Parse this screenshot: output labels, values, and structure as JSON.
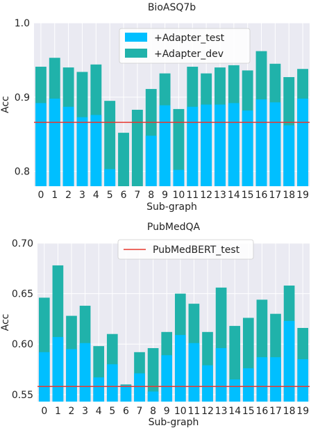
{
  "colors": {
    "test": "#00bfff",
    "dev": "#20b2aa",
    "baseline": "#e8382f",
    "panel": "#eaeaf2",
    "grid": "#ffffff"
  },
  "chart_data": [
    {
      "type": "bar",
      "stacked": "overlay",
      "title": "BioASQ7b",
      "xlabel": "Sub-graph",
      "ylabel": "Acc",
      "ylim": [
        0.78,
        1.0
      ],
      "yticks": [
        0.8,
        0.9,
        1.0
      ],
      "ytick_labels": [
        "0.8",
        "0.9",
        "1.0"
      ],
      "categories": [
        "0",
        "1",
        "2",
        "3",
        "4",
        "5",
        "6",
        "7",
        "8",
        "9",
        "10",
        "11",
        "12",
        "13",
        "14",
        "15",
        "16",
        "17",
        "18",
        "19"
      ],
      "series": [
        {
          "name": "+Adapter_test",
          "color_key": "test",
          "values": [
            0.892,
            0.898,
            0.887,
            0.873,
            0.876,
            0.803,
            0.779,
            0.778,
            0.848,
            0.889,
            0.802,
            0.887,
            0.89,
            0.89,
            0.892,
            0.882,
            0.897,
            0.893,
            0.862,
            0.898
          ]
        },
        {
          "name": "+Adapter_dev",
          "color_key": "dev",
          "values": [
            0.941,
            0.953,
            0.94,
            0.934,
            0.944,
            0.895,
            0.852,
            0.883,
            0.911,
            0.932,
            0.884,
            0.941,
            0.932,
            0.94,
            0.943,
            0.936,
            0.962,
            0.945,
            0.927,
            0.938
          ]
        }
      ],
      "baseline": {
        "name": "",
        "value": 0.866
      },
      "legend": {
        "position": "top-center",
        "entries": [
          "+Adapter_test",
          "+Adapter_dev"
        ]
      },
      "grid": true
    },
    {
      "type": "bar",
      "stacked": "overlay",
      "title": "PubMedQA",
      "xlabel": "Sub-graph",
      "ylabel": "Acc",
      "ylim": [
        0.543,
        0.7
      ],
      "yticks": [
        0.55,
        0.6,
        0.65,
        0.7
      ],
      "ytick_labels": [
        "0.55",
        "0.60",
        "0.65",
        "0.70"
      ],
      "categories": [
        "0",
        "1",
        "2",
        "3",
        "4",
        "5",
        "6",
        "7",
        "8",
        "9",
        "10",
        "11",
        "12",
        "13",
        "14",
        "15",
        "16",
        "17",
        "18",
        "19"
      ],
      "series": [
        {
          "name": "+Adapter_test",
          "color_key": "test",
          "values": [
            0.592,
            0.607,
            0.595,
            0.601,
            0.567,
            0.58,
            0.559,
            0.571,
            0.553,
            0.589,
            0.609,
            0.601,
            0.579,
            0.596,
            0.565,
            0.576,
            0.587,
            0.587,
            0.623,
            0.585
          ]
        },
        {
          "name": "+Adapter_dev",
          "color_key": "dev",
          "values": [
            0.646,
            0.678,
            0.628,
            0.638,
            0.598,
            0.61,
            0.56,
            0.592,
            0.596,
            0.612,
            0.65,
            0.64,
            0.612,
            0.656,
            0.618,
            0.626,
            0.644,
            0.63,
            0.658,
            0.616
          ]
        }
      ],
      "baseline": {
        "name": "PubMedBERT_test",
        "value": 0.558
      },
      "legend": {
        "position": "top-right",
        "entries": [
          "PubMedBERT_test"
        ]
      },
      "grid": true
    }
  ]
}
